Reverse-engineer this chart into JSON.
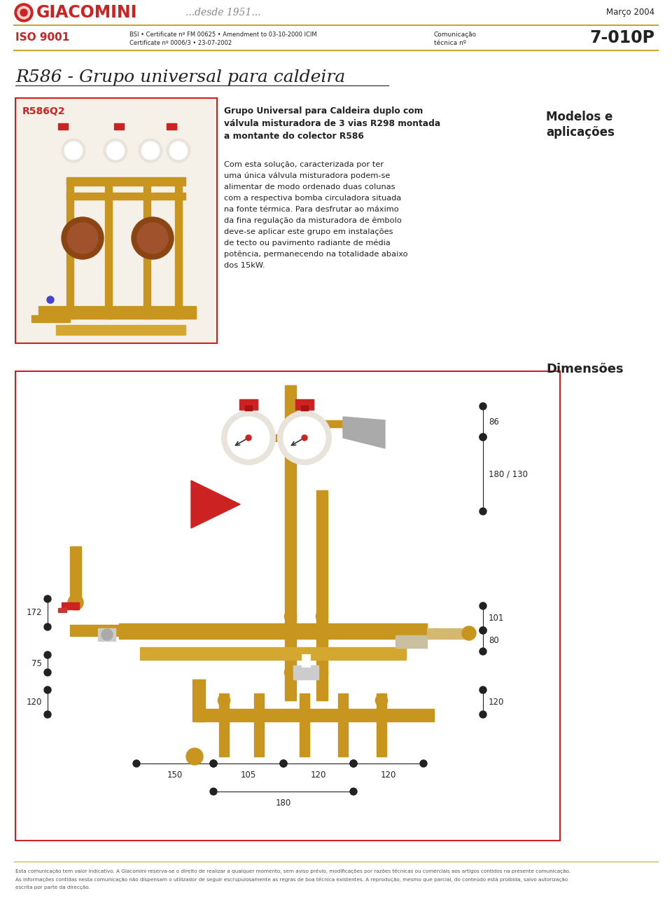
{
  "page_width": 9.6,
  "page_height": 13.02,
  "bg_color": "#ffffff",
  "header": {
    "company": "GIACOMINI",
    "tagline": "...desde 1951...",
    "date": "Março 2004",
    "iso": "ISO 9001",
    "cert_line1": "BSI • Certificate nº FM 00625 • Amendment to 03-10-2000 ICIM",
    "cert_line2": "Certificate nº 0006/3 • 23-07-2002",
    "com_label1": "Comunicação",
    "com_label2": "técnica nº",
    "doc_num": "7-010P"
  },
  "title": "R586 - Grupo universal para caldeira",
  "model_label": "R586Q2",
  "bold_lines": [
    "Grupo Universal para Caldeira duplo com",
    "válvula misturadora de 3 vias R298 montada",
    "a montante do colector R586"
  ],
  "body_lines": [
    "Com esta solução, caracterizada por ter",
    "uma única válvula misturadora podem-se",
    "alimentar de modo ordenado duas colunas",
    "com a respectiva bomba circuladora situada",
    "na fonte térmica. Para desfrutar ao máximo",
    "da fina regulação da misturadora de êmbolo",
    "deve-se aplicar este grupo em instalações",
    "de tecto ou pavimento radiante de média",
    "potência, permanecendo na totalidade abaixo",
    "dos 15kW."
  ],
  "sidebar_line1": "Modelos e",
  "sidebar_line2": "aplicações",
  "dims_label": "Dimensões",
  "footer_text1": "Esta comunicação tem valor indicativo. A Giacomini reserva-se o direito de realizar a qualquer momento, sem aviso prévio, modificações por razões técnicas ou comerciais aos artigos contidos na presente comunicação.",
  "footer_text2": "As informações contidas nesta comunicação não dispensam o utilizador de seguir escrupulosamente as regras de boa técnica existentes. A reprodução, mesmo que parcial, do conteúdo está proibida, salvo autorização",
  "footer_text3": "escrita por parte da direcção.",
  "red": "#cc2222",
  "dark": "#222222",
  "gray": "#666666",
  "gold": "#c8a830",
  "brass": "#c8961e",
  "brass_light": "#d4a830"
}
